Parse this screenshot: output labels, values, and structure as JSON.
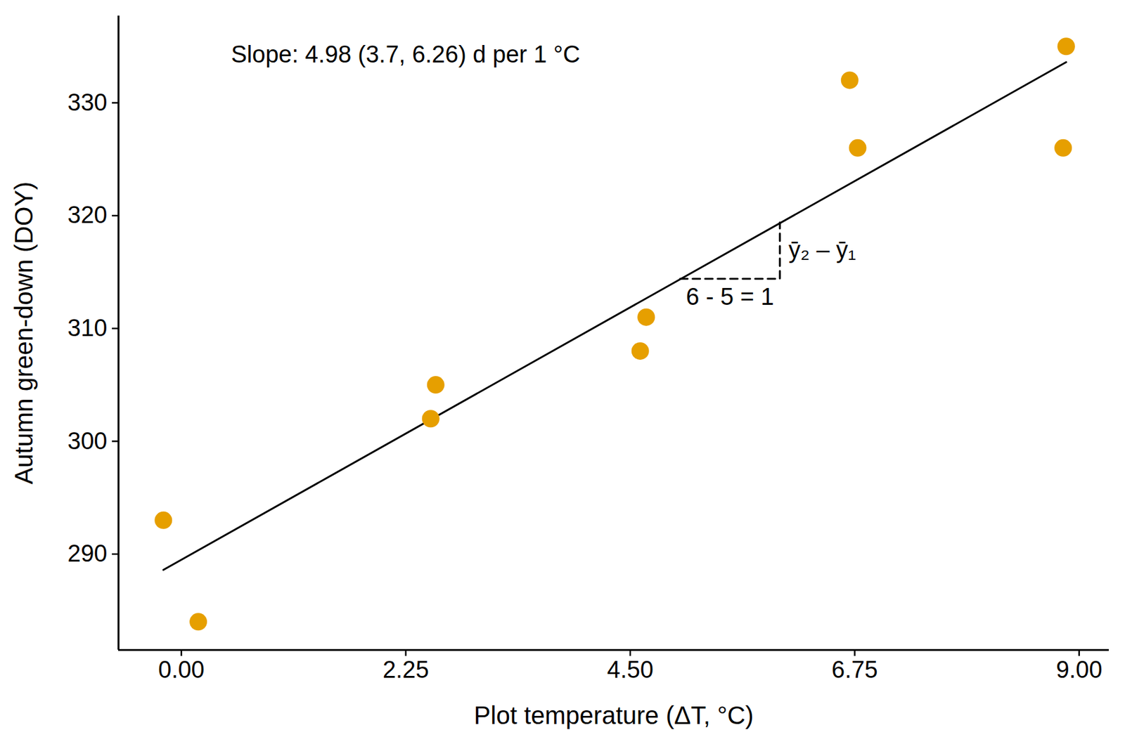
{
  "chart_data": {
    "type": "scatter",
    "x_label": "Plot temperature (ΔT, °C)",
    "y_label": "Autumn green-down (DOY)",
    "annotation": "Slope: 4.98 (3.7, 6.26) d per 1 °C",
    "x": [
      -0.18,
      0.17,
      2.5,
      2.55,
      4.6,
      4.66,
      6.7,
      6.78,
      8.84,
      8.87
    ],
    "values": [
      293,
      284,
      302,
      305,
      308,
      311,
      332,
      326,
      326,
      335
    ],
    "color": "#E69F00",
    "fit": {
      "x": [
        -0.18,
        8.87
      ],
      "values": [
        288.6,
        333.6
      ]
    },
    "slope_triangle": {
      "x": [
        5,
        6
      ],
      "values": [
        314.4,
        319.4
      ],
      "run_label": "6 - 5 = 1",
      "rise_label": "ȳ₂ – ȳ₁"
    },
    "xlim": [
      -0.63,
      9.3
    ],
    "xticks": [
      {
        "value": 0,
        "label": "0.00"
      },
      {
        "value": 2.25,
        "label": "2.25"
      },
      {
        "value": 4.5,
        "label": "4.50"
      },
      {
        "value": 6.75,
        "label": "6.75"
      },
      {
        "value": 9,
        "label": "9.00"
      }
    ],
    "ylim": [
      281.5,
      337.7
    ],
    "yticks": [
      290,
      300,
      310,
      320,
      330
    ],
    "grid": false
  }
}
